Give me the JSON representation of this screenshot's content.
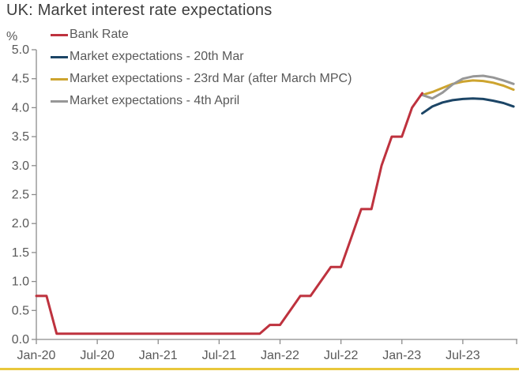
{
  "title": "UK: Market interest rate expectations",
  "colors": {
    "bank_rate": "#BE323E",
    "expectations_20th_mar": "#1C4566",
    "expectations_23rd_mar": "#CDA42F",
    "expectations_4th_april": "#979797",
    "title_text": "#3D3D3D",
    "axis_text": "#595959",
    "axis_line": "#8C8C8C",
    "footer_accent": "#E9C73B",
    "background": "#FFFFFF"
  },
  "legend": [
    {
      "label": "Bank Rate",
      "color": "#BE323E"
    },
    {
      "label": "Market expectations - 20th Mar",
      "color": "#1C4566"
    },
    {
      "label": "Market expectations - 23rd Mar (after March MPC)",
      "color": "#CDA42F"
    },
    {
      "label": "Market expectations - 4th April",
      "color": "#979797"
    }
  ],
  "chart_data": {
    "type": "line",
    "title": "UK: Market interest rate expectations",
    "ylabel": "%",
    "ylim": [
      0,
      5
    ],
    "ytick_step": 0.5,
    "grid": false,
    "legend_position": "top-left",
    "x_unit": "months since Jan-2020",
    "xlim": [
      0,
      47.3
    ],
    "xticks": [
      {
        "m": 0,
        "label": "Jan-20"
      },
      {
        "m": 6,
        "label": "Jul-20"
      },
      {
        "m": 12,
        "label": "Jan-21"
      },
      {
        "m": 18,
        "label": "Jul-21"
      },
      {
        "m": 24,
        "label": "Jan-22"
      },
      {
        "m": 30,
        "label": "Jul-22"
      },
      {
        "m": 36,
        "label": "Jan-23"
      },
      {
        "m": 42,
        "label": "Jul-23"
      }
    ],
    "series": [
      {
        "name": "Bank Rate",
        "color": "#BE323E",
        "start_month": 0,
        "values": [
          0.75,
          0.75,
          0.1,
          0.1,
          0.1,
          0.1,
          0.1,
          0.1,
          0.1,
          0.1,
          0.1,
          0.1,
          0.1,
          0.1,
          0.1,
          0.1,
          0.1,
          0.1,
          0.1,
          0.1,
          0.1,
          0.1,
          0.1,
          0.25,
          0.25,
          0.5,
          0.75,
          0.75,
          1.0,
          1.25,
          1.25,
          1.75,
          2.25,
          2.25,
          3.0,
          3.5,
          3.5,
          4.0,
          4.25
        ]
      },
      {
        "name": "Market expectations - 20th Mar",
        "color": "#1C4566",
        "start_month": 38,
        "values": [
          3.9,
          4.02,
          4.09,
          4.13,
          4.15,
          4.16,
          4.15,
          4.12,
          4.08,
          4.02
        ]
      },
      {
        "name": "Market expectations - 23rd Mar (after March MPC)",
        "color": "#CDA42F",
        "start_month": 38,
        "values": [
          4.22,
          4.27,
          4.34,
          4.41,
          4.45,
          4.47,
          4.46,
          4.43,
          4.38,
          4.31
        ]
      },
      {
        "name": "Market expectations - 4th April",
        "color": "#979797",
        "start_month": 38,
        "values": [
          4.22,
          4.16,
          4.26,
          4.4,
          4.5,
          4.54,
          4.55,
          4.52,
          4.47,
          4.41
        ]
      }
    ]
  }
}
